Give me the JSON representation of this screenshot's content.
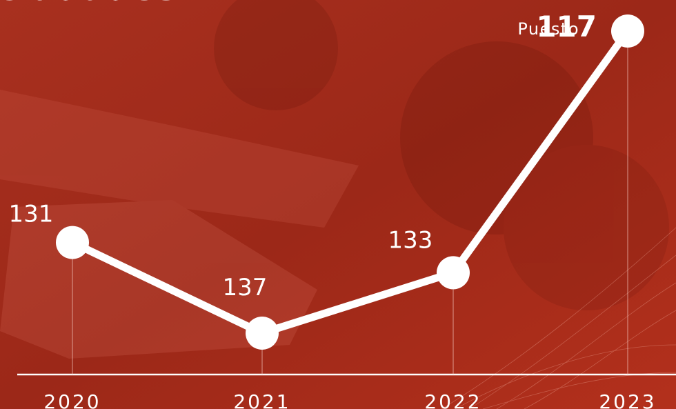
{
  "chart_data": {
    "type": "line",
    "title": "ciudades",
    "categories": [
      "2020",
      "2021",
      "2022",
      "2023"
    ],
    "series": [
      {
        "name": null,
        "color": "#ffffff",
        "values": [
          131,
          137,
          133,
          117
        ]
      }
    ],
    "annotation": "Puesto",
    "y_inverted": true
  }
}
